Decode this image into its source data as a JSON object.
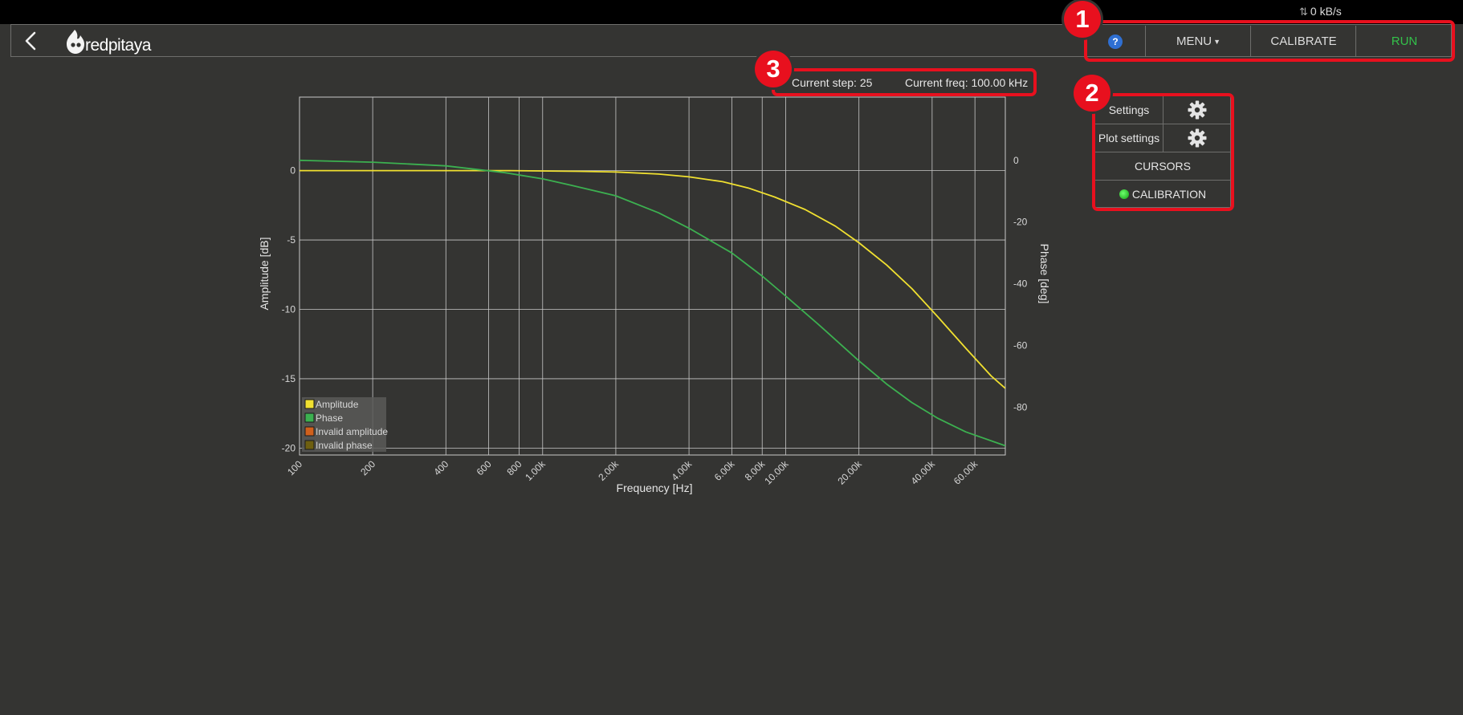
{
  "status": {
    "transfer_rate": "0 kB/s"
  },
  "navbar": {
    "logo_text": "redpitaya",
    "help_glyph": "?",
    "menu_label": "MENU",
    "calibrate_label": "CALIBRATE",
    "run_label": "RUN"
  },
  "info": {
    "current_step": "Current step: 25",
    "current_freq": "Current freq: 100.00 kHz"
  },
  "panel": {
    "settings_label": "Settings",
    "plot_settings_label": "Plot settings",
    "cursors_label": "CURSORS",
    "calibration_label": "CALIBRATION"
  },
  "callouts": [
    "1",
    "2",
    "3"
  ],
  "colors": {
    "amplitude": "#f0e030",
    "phase": "#3cb050",
    "invalid_amplitude": "#d0601c",
    "invalid_phase": "#6e5f10",
    "run": "#33c14a",
    "callout": "#e8101e"
  },
  "chart_data": {
    "type": "line",
    "xlabel": "Frequency [Hz]",
    "ylabel": "Amplitude [dB]",
    "y2label": "Phase [deg]",
    "xscale": "log",
    "xlim": [
      100,
      80000
    ],
    "ylim": [
      -20.5,
      5.3
    ],
    "y2lim": [
      -95.5,
      20.5
    ],
    "xticks": [
      100,
      200,
      400,
      600,
      800,
      1000,
      2000,
      4000,
      6000,
      8000,
      10000,
      20000,
      40000,
      60000
    ],
    "xtick_labels": [
      "100",
      "200",
      "400",
      "600",
      "800",
      "1.00k",
      "2.00k",
      "4.00k",
      "6.00k",
      "8.00k",
      "10.00k",
      "20.00k",
      "40.00k",
      "60.00k"
    ],
    "yticks": [
      0,
      -5,
      -10,
      -15,
      -20
    ],
    "y2ticks": [
      0,
      -20,
      -40,
      -60,
      -80
    ],
    "grid": true,
    "legend_position": "bottom-left",
    "series": [
      {
        "name": "Amplitude",
        "axis": "left",
        "x": [
          100,
          300,
          700,
          1400,
          2000,
          3000,
          4000,
          5500,
          7000,
          9000,
          12000,
          16000,
          20000,
          26000,
          33000,
          42000,
          55000,
          70000,
          80000
        ],
        "y": [
          0,
          0,
          0,
          -0.05,
          -0.1,
          -0.25,
          -0.45,
          -0.8,
          -1.25,
          -1.9,
          -2.8,
          -4,
          -5.2,
          -6.8,
          -8.5,
          -10.5,
          -12.8,
          -14.8,
          -15.7
        ]
      },
      {
        "name": "Phase",
        "axis": "right",
        "x": [
          100,
          200,
          400,
          700,
          1000,
          1300,
          2000,
          3000,
          4000,
          6000,
          8000,
          10000,
          14000,
          20000,
          26000,
          33000,
          42000,
          55000,
          80000
        ],
        "y": [
          0,
          -0.6,
          -1.8,
          -4,
          -6,
          -8,
          -11.5,
          -17,
          -22,
          -30,
          -37.5,
          -44,
          -54,
          -65,
          -72.5,
          -78.5,
          -83.5,
          -88,
          -92.5
        ]
      },
      {
        "name": "Invalid amplitude",
        "axis": "left",
        "x": [],
        "y": []
      },
      {
        "name": "Invalid phase",
        "axis": "right",
        "x": [],
        "y": []
      }
    ]
  }
}
